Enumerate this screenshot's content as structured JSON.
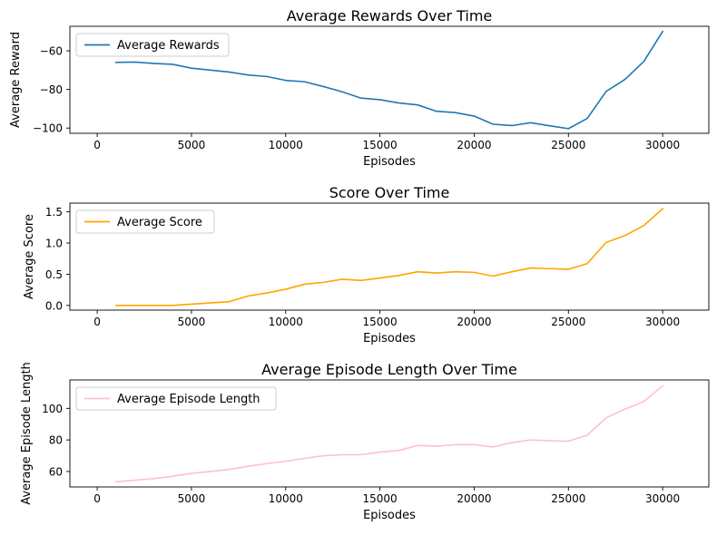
{
  "chart_data": [
    {
      "type": "line",
      "title": "Average Rewards Over Time",
      "xlabel": "Episodes",
      "ylabel": "Average Reward",
      "xlim": [
        -1450,
        32450
      ],
      "ylim": [
        -102.7,
        -47.3
      ],
      "xticks": [
        0,
        5000,
        10000,
        15000,
        20000,
        25000,
        30000
      ],
      "yticks": [
        -100,
        -80,
        -60
      ],
      "ytick_labels": [
        "−100",
        "−80",
        "−60"
      ],
      "legend_position": "upper-left",
      "grid": false,
      "series": [
        {
          "name": "Average Rewards",
          "color": "#1f77b4",
          "x": [
            1000,
            2000,
            3000,
            4000,
            5000,
            6000,
            7000,
            8000,
            9000,
            10000,
            11000,
            12000,
            13000,
            14000,
            15000,
            16000,
            17000,
            18000,
            19000,
            20000,
            21000,
            22000,
            23000,
            24000,
            25000,
            26000,
            27000,
            28000,
            29000,
            30000
          ],
          "y": [
            -66,
            -65.8,
            -66.5,
            -67,
            -69,
            -70,
            -71,
            -72.5,
            -73.3,
            -75.3,
            -76,
            -78.5,
            -81.2,
            -84.5,
            -85.3,
            -87,
            -88,
            -91.3,
            -92,
            -93.8,
            -98,
            -98.7,
            -97.2,
            -98.8,
            -100.3,
            -95,
            -81,
            -74.8,
            -65.5,
            -50
          ]
        }
      ]
    },
    {
      "type": "line",
      "title": "Score Over Time",
      "xlabel": "Episodes",
      "ylabel": "Average Score",
      "xlim": [
        -1450,
        32450
      ],
      "ylim": [
        -0.075,
        1.64
      ],
      "xticks": [
        0,
        5000,
        10000,
        15000,
        20000,
        25000,
        30000
      ],
      "yticks": [
        0.0,
        0.5,
        1.0,
        1.5
      ],
      "ytick_labels": [
        "0.0",
        "0.5",
        "1.0",
        "1.5"
      ],
      "legend_position": "upper-left",
      "grid": false,
      "series": [
        {
          "name": "Average Score",
          "color": "#ffa500",
          "x": [
            1000,
            2000,
            3000,
            4000,
            5000,
            6000,
            7000,
            8000,
            9000,
            10000,
            11000,
            12000,
            13000,
            14000,
            15000,
            16000,
            17000,
            18000,
            19000,
            20000,
            21000,
            22000,
            23000,
            24000,
            25000,
            26000,
            27000,
            28000,
            29000,
            30000
          ],
          "y": [
            0.0,
            0.0,
            0.0,
            0.0,
            0.02,
            0.04,
            0.06,
            0.15,
            0.2,
            0.26,
            0.34,
            0.37,
            0.42,
            0.4,
            0.44,
            0.48,
            0.54,
            0.52,
            0.54,
            0.53,
            0.47,
            0.54,
            0.6,
            0.59,
            0.58,
            0.67,
            1.01,
            1.12,
            1.28,
            1.55
          ]
        }
      ]
    },
    {
      "type": "line",
      "title": "Average Episode Length Over Time",
      "xlabel": "Episodes",
      "ylabel": "Average Episode Length",
      "xlim": [
        -1450,
        32450
      ],
      "ylim": [
        50.2,
        118
      ],
      "xticks": [
        0,
        5000,
        10000,
        15000,
        20000,
        25000,
        30000
      ],
      "yticks": [
        60,
        80,
        100
      ],
      "ytick_labels": [
        "60",
        "80",
        "100"
      ],
      "legend_position": "upper-left",
      "grid": false,
      "series": [
        {
          "name": "Average Episode Length",
          "color": "#ffc0cb",
          "x": [
            1000,
            2000,
            3000,
            4000,
            5000,
            6000,
            7000,
            8000,
            9000,
            10000,
            11000,
            12000,
            13000,
            14000,
            15000,
            16000,
            17000,
            18000,
            19000,
            20000,
            21000,
            22000,
            23000,
            24000,
            25000,
            26000,
            27000,
            28000,
            29000,
            30000
          ],
          "y": [
            53.5,
            54.5,
            55.5,
            57,
            58.8,
            60,
            61.3,
            63.3,
            65,
            66.5,
            68.3,
            70,
            70.6,
            70.6,
            72.3,
            73.3,
            76.5,
            76,
            77,
            77,
            75.5,
            78.3,
            80,
            79.5,
            79.2,
            83,
            94,
            99.5,
            104.3,
            114.3
          ]
        }
      ]
    }
  ]
}
